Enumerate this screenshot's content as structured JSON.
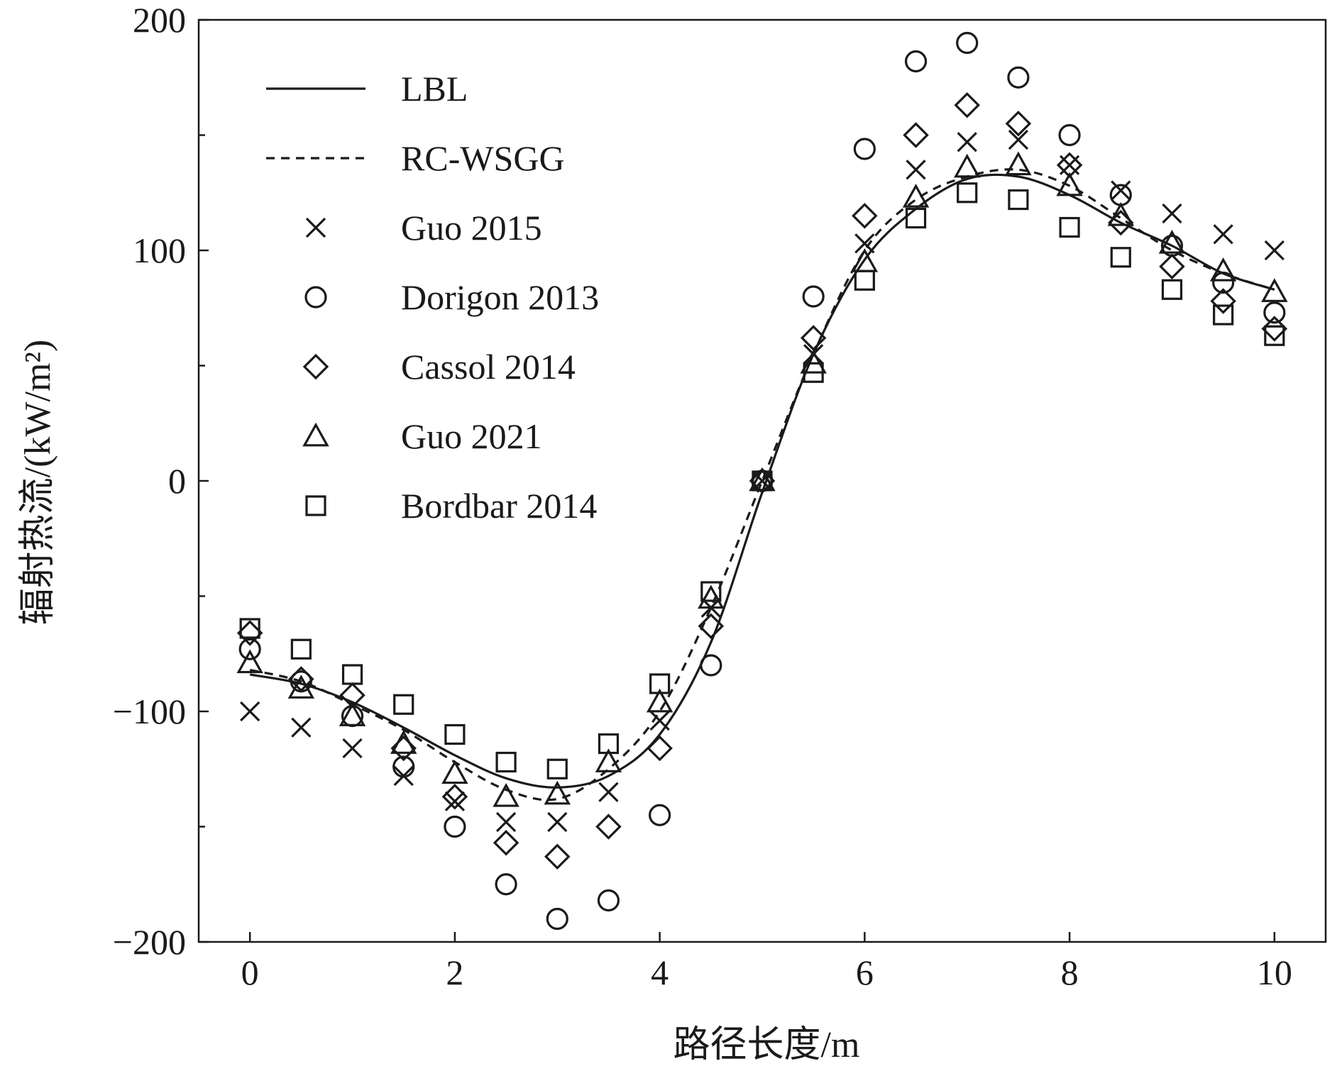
{
  "chart_data": {
    "type": "scatter",
    "xlabel": "路径长度/m",
    "ylabel": "辐射热流/(kW/m²)",
    "xlim": [
      -0.5,
      10.5
    ],
    "ylim": [
      -200,
      200
    ],
    "x_ticks": [
      0,
      2,
      4,
      6,
      8,
      10
    ],
    "y_ticks": [
      -200,
      -100,
      0,
      100,
      200
    ],
    "x_tick_labels": [
      "0",
      "2",
      "4",
      "6",
      "8",
      "10"
    ],
    "y_tick_labels": [
      "−200",
      "−100",
      "0",
      "100",
      "200"
    ],
    "grid": false,
    "legend_placement": "top-left",
    "x": [
      0,
      0.5,
      1,
      1.5,
      2,
      2.5,
      3,
      3.5,
      4,
      4.5,
      5,
      5.5,
      6,
      6.5,
      7,
      7.5,
      8,
      8.5,
      9,
      9.5,
      10
    ],
    "series": [
      {
        "name": "LBL",
        "style": "solid-line",
        "color": "#1a1a1a",
        "values": [
          -84,
          -88,
          -96,
          -107,
          -119,
          -129,
          -133,
          -128,
          -110,
          -70,
          -5,
          55,
          96,
          118,
          131,
          132,
          124,
          112,
          102,
          90,
          83
        ]
      },
      {
        "name": "RC-WSGG",
        "style": "dashed-line",
        "color": "#1a1a1a",
        "values": [
          -82,
          -87,
          -97,
          -108,
          -122,
          -134,
          -138,
          -125,
          -100,
          -55,
          0,
          55,
          100,
          122,
          132,
          135,
          128,
          114,
          100,
          90,
          83
        ]
      },
      {
        "name": "Guo 2015",
        "style": "marker-x",
        "color": "#1a1a1a",
        "values": [
          -100,
          -107,
          -116,
          -128,
          -139,
          -148,
          -148,
          -135,
          -104,
          -55,
          0,
          55,
          103,
          135,
          147,
          148,
          137,
          126,
          116,
          107,
          100
        ]
      },
      {
        "name": "Dorigon 2013",
        "style": "marker-circle",
        "color": "#1a1a1a",
        "values": [
          -73,
          -87,
          -102,
          -124,
          -150,
          -175,
          -190,
          -182,
          -145,
          -80,
          0,
          80,
          144,
          182,
          190,
          175,
          150,
          124,
          102,
          86,
          73
        ]
      },
      {
        "name": "Cassol 2014",
        "style": "marker-diamond",
        "color": "#1a1a1a",
        "values": [
          -66,
          -86,
          -93,
          -116,
          -137,
          -157,
          -163,
          -150,
          -116,
          -63,
          0,
          62,
          115,
          150,
          163,
          155,
          137,
          112,
          93,
          78,
          66
        ]
      },
      {
        "name": "Guo 2021",
        "style": "marker-triangle",
        "color": "#1a1a1a",
        "values": [
          -79,
          -90,
          -102,
          -114,
          -127,
          -137,
          -136,
          -122,
          -96,
          -51,
          0,
          51,
          95,
          123,
          136,
          137,
          128,
          115,
          103,
          91,
          82
        ]
      },
      {
        "name": "Bordbar 2014",
        "style": "marker-square",
        "color": "#1a1a1a",
        "values": [
          -64,
          -73,
          -84,
          -97,
          -110,
          -122,
          -125,
          -114,
          -88,
          -48,
          0,
          47,
          87,
          114,
          125,
          122,
          110,
          97,
          83,
          72,
          63
        ]
      }
    ]
  }
}
